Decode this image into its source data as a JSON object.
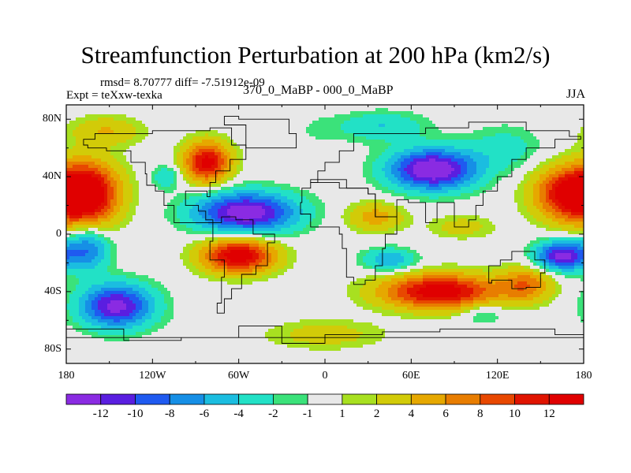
{
  "chart_data": {
    "type": "heatmap",
    "title": "Streamfunction Perturbation at 200 hPa (km2/s)",
    "stats_text": "rmsd= 8.70777  diff= -7.51912e-09",
    "experiment_label": "Expt = teXxw-texka",
    "experiment_pair": "370_0_MaBP - 000_0_MaBP",
    "season": "JJA",
    "x_ticks": [
      "180",
      "120W",
      "60W",
      "0",
      "60E",
      "120E",
      "180"
    ],
    "x_tick_values": [
      -180,
      -120,
      -60,
      0,
      60,
      120,
      180
    ],
    "y_ticks": [
      "80N",
      "40N",
      "0",
      "40S",
      "80S"
    ],
    "y_tick_values": [
      80,
      40,
      0,
      -40,
      -80
    ],
    "xlim": [
      -180,
      180
    ],
    "ylim": [
      -90,
      90
    ],
    "colorbar": {
      "labels": [
        "-12",
        "-10",
        "-8",
        "-6",
        "-4",
        "-2",
        "-1",
        "1",
        "2",
        "4",
        "6",
        "8",
        "10",
        "12"
      ],
      "levels": [
        -12,
        -10,
        -8,
        -6,
        -4,
        -2,
        -1,
        1,
        2,
        4,
        6,
        8,
        10,
        12
      ],
      "colors": [
        "#8a2be2",
        "#5a1ee0",
        "#1f5af0",
        "#168fe6",
        "#1bbde0",
        "#22e1c6",
        "#3be27a",
        "#e8e8e8",
        "#a8e020",
        "#d2cb08",
        "#e6a800",
        "#e87d00",
        "#e84800",
        "#e01400",
        "#e00000"
      ]
    },
    "field_centers": [
      {
        "lon": -165,
        "lat": 28,
        "value": 14,
        "rlon": 22,
        "rlat": 22
      },
      {
        "lon": -82,
        "lat": 50,
        "value": 13,
        "rlon": 16,
        "rlat": 14
      },
      {
        "lon": -152,
        "lat": 72,
        "value": 4,
        "rlon": 25,
        "rlat": 10
      },
      {
        "lon": -110,
        "lat": 40,
        "value": -4,
        "rlon": 10,
        "rlat": 8
      },
      {
        "lon": -55,
        "lat": 15,
        "value": -14,
        "rlon": 35,
        "rlat": 14
      },
      {
        "lon": -5,
        "lat": 72,
        "value": -1,
        "rlon": 20,
        "rlat": 12
      },
      {
        "lon": 40,
        "lat": 75,
        "value": -4,
        "rlon": 30,
        "rlat": 10
      },
      {
        "lon": 75,
        "lat": 45,
        "value": -15,
        "rlon": 30,
        "rlat": 14
      },
      {
        "lon": 125,
        "lat": 60,
        "value": -3,
        "rlon": 25,
        "rlat": 15
      },
      {
        "lon": 170,
        "lat": 28,
        "value": 13,
        "rlon": 24,
        "rlat": 18
      },
      {
        "lon": 35,
        "lat": 12,
        "value": 5,
        "rlon": 20,
        "rlat": 10
      },
      {
        "lon": 95,
        "lat": 5,
        "value": 3,
        "rlon": 22,
        "rlat": 8
      },
      {
        "lon": 45,
        "lat": -18,
        "value": -6,
        "rlon": 18,
        "rlat": 8
      },
      {
        "lon": -165,
        "lat": -10,
        "value": -8,
        "rlon": 15,
        "rlat": 15
      },
      {
        "lon": -60,
        "lat": -15,
        "value": 14,
        "rlon": 25,
        "rlat": 12
      },
      {
        "lon": 165,
        "lat": -15,
        "value": -13,
        "rlon": 18,
        "rlat": 10
      },
      {
        "lon": -145,
        "lat": -50,
        "value": -13,
        "rlon": 25,
        "rlat": 15
      },
      {
        "lon": -80,
        "lat": -60,
        "value": -1,
        "rlon": 20,
        "rlat": 8
      },
      {
        "lon": 80,
        "lat": -40,
        "value": 14,
        "rlon": 40,
        "rlat": 12
      },
      {
        "lon": 110,
        "lat": -55,
        "value": -3,
        "rlon": 15,
        "rlat": 8
      },
      {
        "lon": 140,
        "lat": -35,
        "value": 7,
        "rlon": 18,
        "rlat": 12
      },
      {
        "lon": 0,
        "lat": -70,
        "value": 3,
        "rlon": 40,
        "rlat": 10
      }
    ]
  }
}
